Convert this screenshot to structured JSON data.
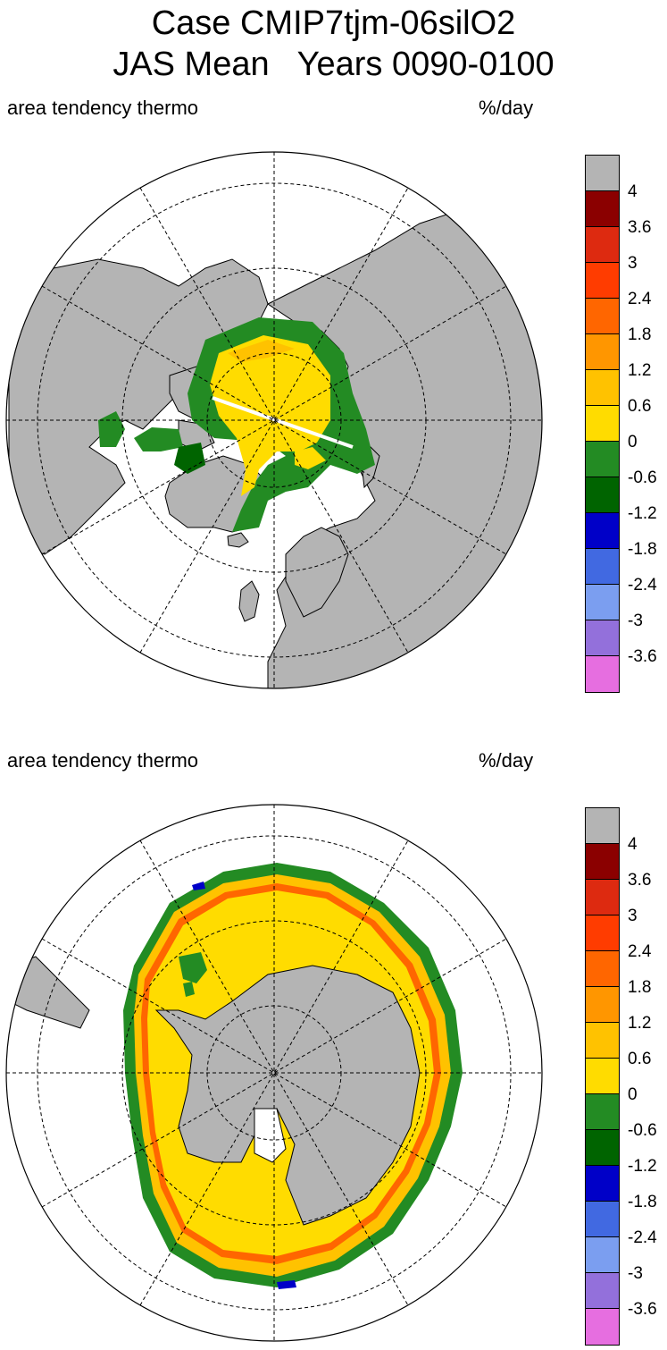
{
  "title": {
    "line1": "Case CMIP7tjm-06silO2",
    "line2": "JAS Mean   Years 0090-0100"
  },
  "panels": [
    {
      "id": "north",
      "left_label": "area tendency thermo",
      "right_label": "%/day"
    },
    {
      "id": "south",
      "left_label": "area tendency thermo",
      "right_label": "%/day"
    }
  ],
  "colorbar": {
    "tick_labels": [
      "4",
      "3.6",
      "3",
      "2.4",
      "1.8",
      "1.2",
      "0.6",
      "0",
      "-0.6",
      "-1.2",
      "-1.8",
      "-2.4",
      "-3",
      "-3.6"
    ],
    "colors": [
      "#b4b4b4",
      "#8b0000",
      "#dd2a10",
      "#ff3c00",
      "#ff6600",
      "#ff9600",
      "#ffc200",
      "#ffdc00",
      "#238b23",
      "#006400",
      "#0000c8",
      "#4169e1",
      "#7b9ef0",
      "#9370db",
      "#e66ee0"
    ]
  },
  "colors": {
    "land": "#b4b4b4",
    "ice_positive": "#ffdc00",
    "ice_orange": "#ffc200",
    "ice_red": "#ff6600",
    "ice_negative": "#238b23",
    "ice_dark_green": "#006400"
  }
}
